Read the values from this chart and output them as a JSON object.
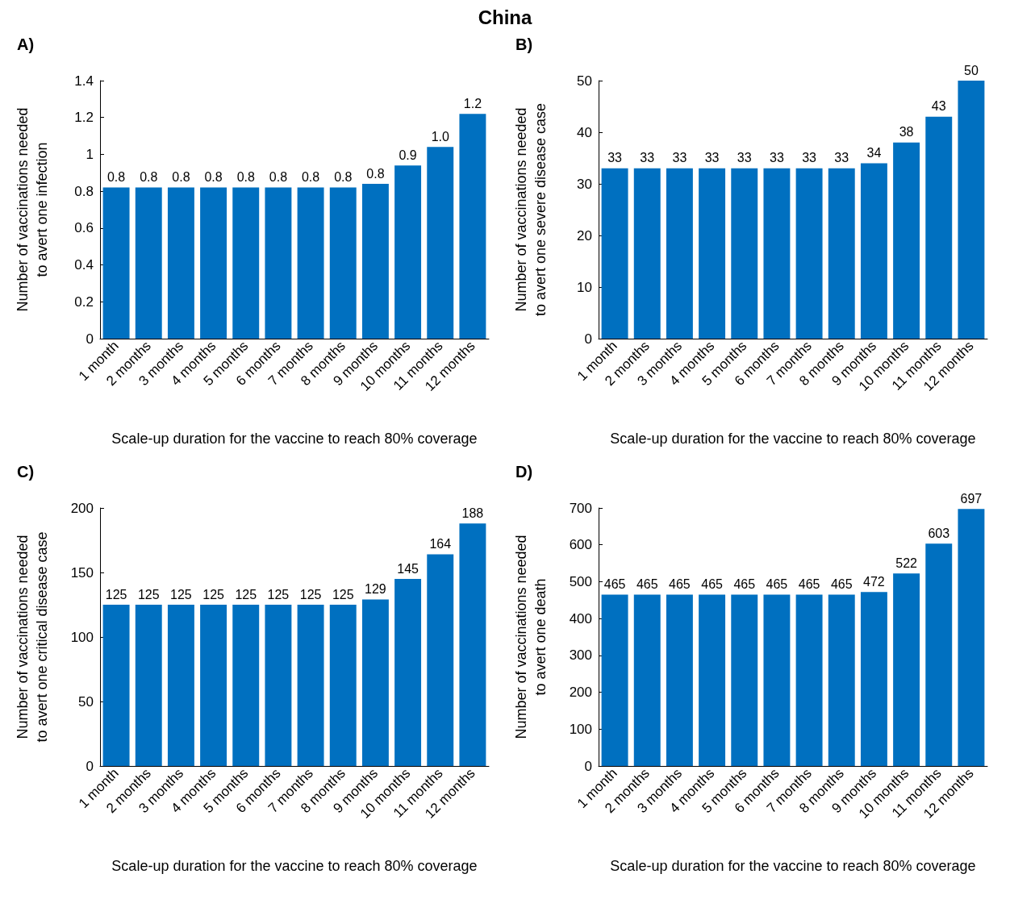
{
  "chart_data": [
    {
      "type": "bar",
      "title": "A)",
      "annotations": [
        "China"
      ],
      "categories": [
        "1 month",
        "2 months",
        "3 months",
        "4 months",
        "5 months",
        "6 months",
        "7 months",
        "8 months",
        "9 months",
        "10 months",
        "11 months",
        "12 months"
      ],
      "xlabel": "Scale-up duration for the vaccine to reach 80% coverage",
      "ylabel": "Number of vaccinations needed\nto avert one infection",
      "values": [
        0.82,
        0.82,
        0.82,
        0.82,
        0.82,
        0.82,
        0.82,
        0.82,
        0.84,
        0.94,
        1.04,
        1.22
      ],
      "value_labels": [
        "0.8",
        "0.8",
        "0.8",
        "0.8",
        "0.8",
        "0.8",
        "0.8",
        "0.8",
        "0.8",
        "0.9",
        "1.0",
        "1.2"
      ],
      "color": "#0070c0",
      "ylim": [
        0,
        1.4
      ],
      "yticks": [
        0,
        0.2,
        0.4,
        0.6,
        0.8,
        1,
        1.2,
        1.4
      ],
      "grid": false
    },
    {
      "type": "bar",
      "title": "B)",
      "categories": [
        "1 month",
        "2 months",
        "3 months",
        "4 months",
        "5 months",
        "6 months",
        "7 months",
        "8 months",
        "9 months",
        "10 months",
        "11 months",
        "12 months"
      ],
      "xlabel": "Scale-up duration for the vaccine to reach 80% coverage",
      "ylabel": "Number of vaccinations needed\nto avert one severe disease case",
      "values": [
        33,
        33,
        33,
        33,
        33,
        33,
        33,
        33,
        34,
        38,
        43,
        50
      ],
      "data_labels": true,
      "color": "#0070c0",
      "ylim": [
        0,
        50
      ],
      "yticks": [
        0,
        10,
        20,
        30,
        40,
        50
      ],
      "grid": false
    },
    {
      "type": "bar",
      "title": "C)",
      "categories": [
        "1 month",
        "2 months",
        "3 months",
        "4 months",
        "5 months",
        "6 months",
        "7 months",
        "8 months",
        "9 months",
        "10 months",
        "11 months",
        "12 months"
      ],
      "xlabel": "Scale-up duration for the vaccine to reach 80% coverage",
      "ylabel": "Number of vaccinations needed\nto avert one critical disease case",
      "values": [
        125,
        125,
        125,
        125,
        125,
        125,
        125,
        125,
        129,
        145,
        164,
        188
      ],
      "data_labels": true,
      "color": "#0070c0",
      "ylim": [
        0,
        200
      ],
      "yticks": [
        0,
        50,
        100,
        150,
        200
      ],
      "grid": false
    },
    {
      "type": "bar",
      "title": "D)",
      "categories": [
        "1 month",
        "2 months",
        "3 months",
        "4 months",
        "5 months",
        "6 months",
        "7 months",
        "8 months",
        "9 months",
        "10 months",
        "11 months",
        "12 months"
      ],
      "xlabel": "Scale-up duration for the vaccine to reach 80% coverage",
      "ylabel": "Number of vaccinations needed\nto avert one death",
      "values": [
        465,
        465,
        465,
        465,
        465,
        465,
        465,
        465,
        472,
        522,
        603,
        697
      ],
      "data_labels": true,
      "color": "#0070c0",
      "ylim": [
        0,
        700
      ],
      "yticks": [
        0,
        100,
        200,
        300,
        400,
        500,
        600,
        700
      ],
      "grid": false
    }
  ]
}
